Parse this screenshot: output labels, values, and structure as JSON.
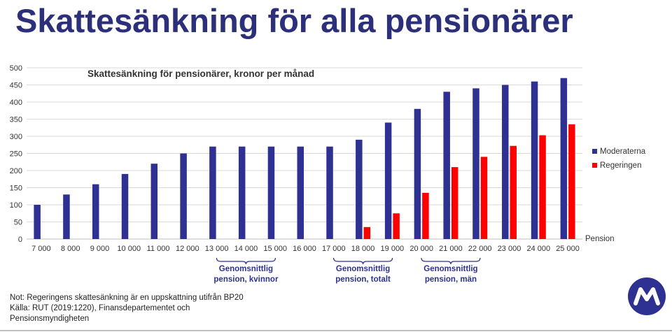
{
  "page_title": "Skattesänkning för alla pensionärer",
  "chart_data": {
    "type": "bar",
    "title": "Skattesänkning för pensionärer, kronor per månad",
    "xlabel": "Pension",
    "ylabel": "",
    "ylim": [
      0,
      500
    ],
    "yticks": [
      0,
      50,
      100,
      150,
      200,
      250,
      300,
      350,
      400,
      450,
      500
    ],
    "grid": true,
    "legend_position": "right",
    "categories": [
      "7 000",
      "8 000",
      "9 000",
      "10 000",
      "11 000",
      "12 000",
      "13 000",
      "14 000",
      "15 000",
      "16 000",
      "17 000",
      "18 000",
      "19 000",
      "20 000",
      "21 000",
      "22 000",
      "23 000",
      "24 000",
      "25 000"
    ],
    "series": [
      {
        "name": "Moderaterna",
        "color": "#2e3191",
        "values": [
          100,
          130,
          160,
          190,
          220,
          250,
          270,
          270,
          270,
          270,
          270,
          290,
          340,
          380,
          430,
          440,
          450,
          460,
          470
        ]
      },
      {
        "name": "Regeringen",
        "color": "#ff0000",
        "values": [
          0,
          0,
          0,
          0,
          0,
          0,
          0,
          0,
          0,
          0,
          0,
          35,
          75,
          135,
          210,
          240,
          272,
          303,
          335
        ]
      }
    ],
    "annotations": [
      {
        "category_index": 7,
        "lines": [
          "Genomsnittlig",
          "pension, kvinnor"
        ]
      },
      {
        "category_index": 11,
        "lines": [
          "Genomsnittlig",
          "pension, totalt"
        ]
      },
      {
        "category_index": 14,
        "lines": [
          "Genomsnittlig",
          "pension, män"
        ]
      }
    ]
  },
  "notes": [
    "Not: Regeringens skattesänkning är en uppskattning utifrån BP20",
    "Källa: RUT (2019:1220), Finansdepartementet och",
    "Pensionsmyndigheten"
  ],
  "logo": {
    "icon": "moderaterna-m-logo-icon",
    "color": "#2e3191"
  }
}
